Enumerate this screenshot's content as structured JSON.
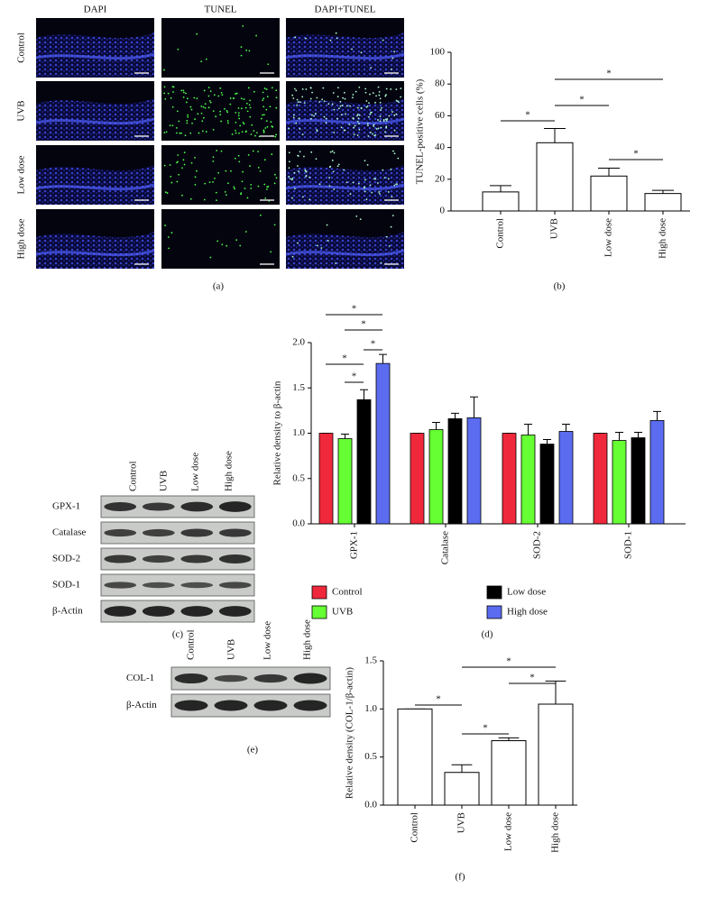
{
  "panel_a": {
    "label": "(a)",
    "columns": [
      "DAPI",
      "TUNEL",
      "DAPI+TUNEL"
    ],
    "rows": [
      "Control",
      "UVB",
      "Low dose",
      "High dose"
    ]
  },
  "panel_c": {
    "label": "(c)",
    "lanes": [
      "Control",
      "UVB",
      "Low dose",
      "High dose"
    ],
    "rows": [
      "GPX-1",
      "Catalase",
      "SOD-2",
      "SOD-1",
      "β-Actin"
    ]
  },
  "panel_e": {
    "label": "(e)",
    "lanes": [
      "Control",
      "UVB",
      "Low dose",
      "High dose"
    ],
    "rows": [
      "COL-1",
      "β-Actin"
    ]
  },
  "chart_data": [
    {
      "type": "bar",
      "panel_label": "(b)",
      "y_label": "TUNEL-positive cells (%)",
      "categories": [
        "Control",
        "UVB",
        "Low dose",
        "High dose"
      ],
      "values": [
        12,
        43,
        22,
        11
      ],
      "errors": [
        4,
        9,
        5,
        2
      ],
      "color": "#ffffff",
      "edge_color": "#000000",
      "ylim": [
        0,
        100
      ],
      "yticks": [
        0,
        20,
        40,
        60,
        80,
        100
      ],
      "annotations": [
        "*",
        "*",
        "*",
        "*"
      ]
    },
    {
      "type": "grouped_bar",
      "panel_label": "(d)",
      "y_label": "Relative density to β-actin",
      "categories": [
        "GPX-1",
        "Catalase",
        "SOD-2",
        "SOD-1"
      ],
      "series": [
        {
          "name": "Control",
          "color": "#f0283c",
          "values": [
            1.0,
            1.0,
            1.0,
            1.0
          ],
          "errors": [
            0,
            0,
            0,
            0
          ]
        },
        {
          "name": "UVB",
          "color": "#66ff33",
          "values": [
            0.94,
            1.04,
            0.98,
            0.92
          ],
          "errors": [
            0.05,
            0.08,
            0.12,
            0.09
          ]
        },
        {
          "name": "Low dose",
          "color": "#000000",
          "values": [
            1.37,
            1.16,
            0.88,
            0.95
          ],
          "errors": [
            0.11,
            0.06,
            0.05,
            0.06
          ]
        },
        {
          "name": "High dose",
          "color": "#5b6cf0",
          "values": [
            1.77,
            1.17,
            1.02,
            1.14
          ],
          "errors": [
            0.1,
            0.23,
            0.08,
            0.1
          ]
        }
      ],
      "edge_color": "#000000",
      "legend": "bottom",
      "ylim": [
        0,
        2
      ],
      "yticks": [
        {
          "value": 0,
          "label": "0.0"
        },
        0.5,
        {
          "value": 1,
          "label": "1.0"
        },
        1.5,
        {
          "value": 2,
          "label": "2.0"
        }
      ],
      "annotations": [
        "*",
        "*",
        "*",
        "*",
        "*"
      ]
    },
    {
      "type": "bar",
      "panel_label": "(f)",
      "y_label": "Relative density (COL-1/β-actin)",
      "categories": [
        "Control",
        "UVB",
        "Low dose",
        "High dose"
      ],
      "values": [
        1.0,
        0.34,
        0.67,
        1.05
      ],
      "errors": [
        0,
        0.08,
        0.03,
        0.24
      ],
      "color": "#ffffff",
      "edge_color": "#000000",
      "ylim": [
        0,
        1.5
      ],
      "yticks": [
        {
          "value": 0,
          "label": "0.0"
        },
        0.5,
        {
          "value": 1,
          "label": "1.0"
        },
        1.5
      ],
      "annotations": [
        "*",
        "*",
        "*",
        "*"
      ]
    }
  ]
}
